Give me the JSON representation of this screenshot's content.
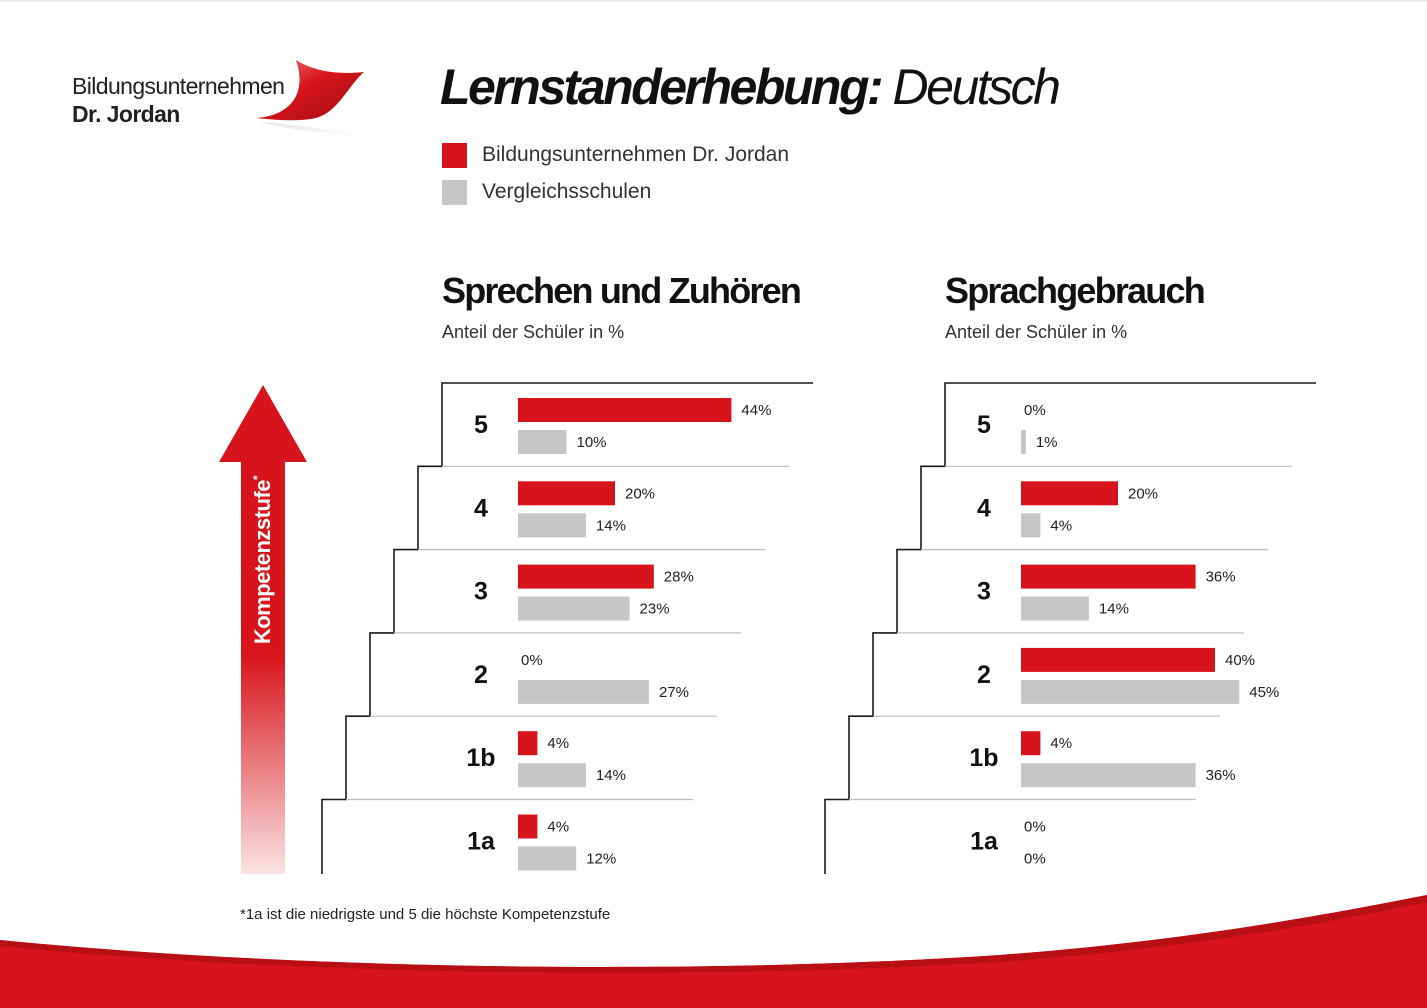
{
  "logo": {
    "line1": "Bildungsunternehmen",
    "line2": "Dr. Jordan"
  },
  "title": {
    "main": "Lernstanderhebung:",
    "subject": "Deutsch"
  },
  "legend": [
    {
      "label": "Bildungsunternehmen Dr. Jordan",
      "color": "#d7141b"
    },
    {
      "label": "Vergleichsschulen",
      "color": "#c6c6c6"
    }
  ],
  "axis": {
    "label": "Kompetenzstufe",
    "marker": "*"
  },
  "footnote": "*1a ist die niedrigste und 5 die höchste Kompetenzstufe",
  "colors": {
    "accent": "#d7141b",
    "comparison": "#c6c6c6",
    "stair_line": "#1a1a1a",
    "divider": "#bdbdbd"
  },
  "chart_data": [
    {
      "type": "bar",
      "orientation": "horizontal",
      "title": "Sprechen und Zuhören",
      "subtitle": "Anteil der Schüler in %",
      "categories": [
        "5",
        "4",
        "3",
        "2",
        "1b",
        "1a"
      ],
      "series": [
        {
          "name": "Bildungsunternehmen Dr. Jordan",
          "values": [
            44,
            20,
            28,
            0,
            4,
            4
          ],
          "labels": [
            "44%",
            "20%",
            "28%",
            "0%",
            "4%",
            "4%"
          ]
        },
        {
          "name": "Vergleichsschulen",
          "values": [
            10,
            14,
            23,
            27,
            14,
            12
          ],
          "labels": [
            "10%",
            "14%",
            "23%",
            "27%",
            "14%",
            "12%"
          ]
        }
      ]
    },
    {
      "type": "bar",
      "orientation": "horizontal",
      "title": "Sprachgebrauch",
      "subtitle": "Anteil der Schüler in %",
      "categories": [
        "5",
        "4",
        "3",
        "2",
        "1b",
        "1a"
      ],
      "series": [
        {
          "name": "Bildungsunternehmen Dr. Jordan",
          "values": [
            0,
            20,
            36,
            40,
            4,
            0
          ],
          "labels": [
            "0%",
            "20%",
            "36%",
            "40%",
            "4%",
            "0%"
          ]
        },
        {
          "name": "Vergleichsschulen",
          "values": [
            1,
            4,
            14,
            45,
            36,
            0
          ],
          "labels": [
            "1%",
            "4%",
            "14%",
            "45%",
            "36%",
            "0%"
          ]
        }
      ]
    }
  ]
}
